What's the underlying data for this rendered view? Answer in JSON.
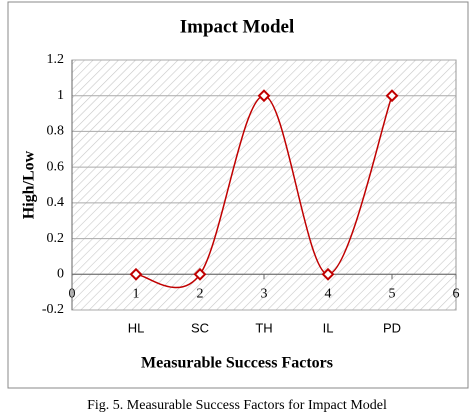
{
  "chart_data": {
    "type": "line",
    "title": "Impact Model",
    "x_label": "Measurable Success Factors",
    "y_label": "High/Low",
    "caption": "Fig. 5. Measurable Success Factors for Impact Model",
    "x": [
      1,
      2,
      3,
      4,
      5
    ],
    "categories": [
      "HL",
      "SC",
      "TH",
      "IL",
      "PD"
    ],
    "series": [
      {
        "color": "#c00000",
        "values": [
          0,
          0,
          1,
          0,
          1
        ]
      }
    ],
    "xlim": [
      0,
      6
    ],
    "xticks": [
      0,
      1,
      2,
      3,
      4,
      5,
      6
    ],
    "ylim": [
      -0.2,
      1.2
    ],
    "yticks": [
      -0.2,
      0,
      0.2,
      0.4,
      0.6,
      0.8,
      1,
      1.2
    ],
    "grid": true,
    "smooth": true
  }
}
